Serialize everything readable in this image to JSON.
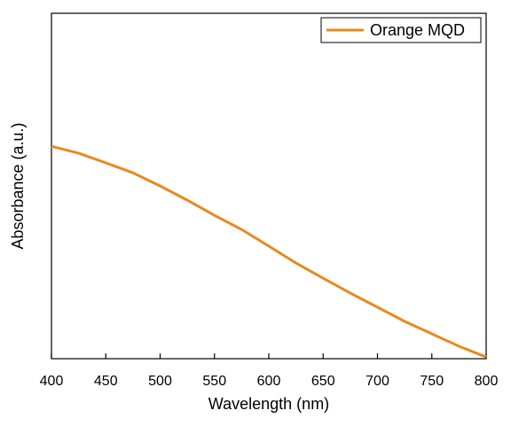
{
  "chart_data": {
    "type": "line",
    "x_label": "Wavelength (nm)",
    "y_label": "Absorbance (a.u.)",
    "x": [
      400,
      425,
      450,
      475,
      500,
      525,
      550,
      575,
      600,
      625,
      650,
      675,
      700,
      725,
      750,
      775,
      800
    ],
    "series": [
      {
        "name": "Orange MQD",
        "color": "#e8891c",
        "values": [
          0.615,
          0.595,
          0.567,
          0.538,
          0.5,
          0.459,
          0.415,
          0.374,
          0.326,
          0.277,
          0.233,
          0.19,
          0.149,
          0.108,
          0.072,
          0.036,
          0.005
        ]
      }
    ],
    "xlim": [
      400,
      800
    ],
    "xticks": [
      400,
      450,
      500,
      550,
      600,
      650,
      700,
      750,
      800
    ],
    "ylim": [
      0,
      1
    ],
    "legend": "upper right"
  }
}
